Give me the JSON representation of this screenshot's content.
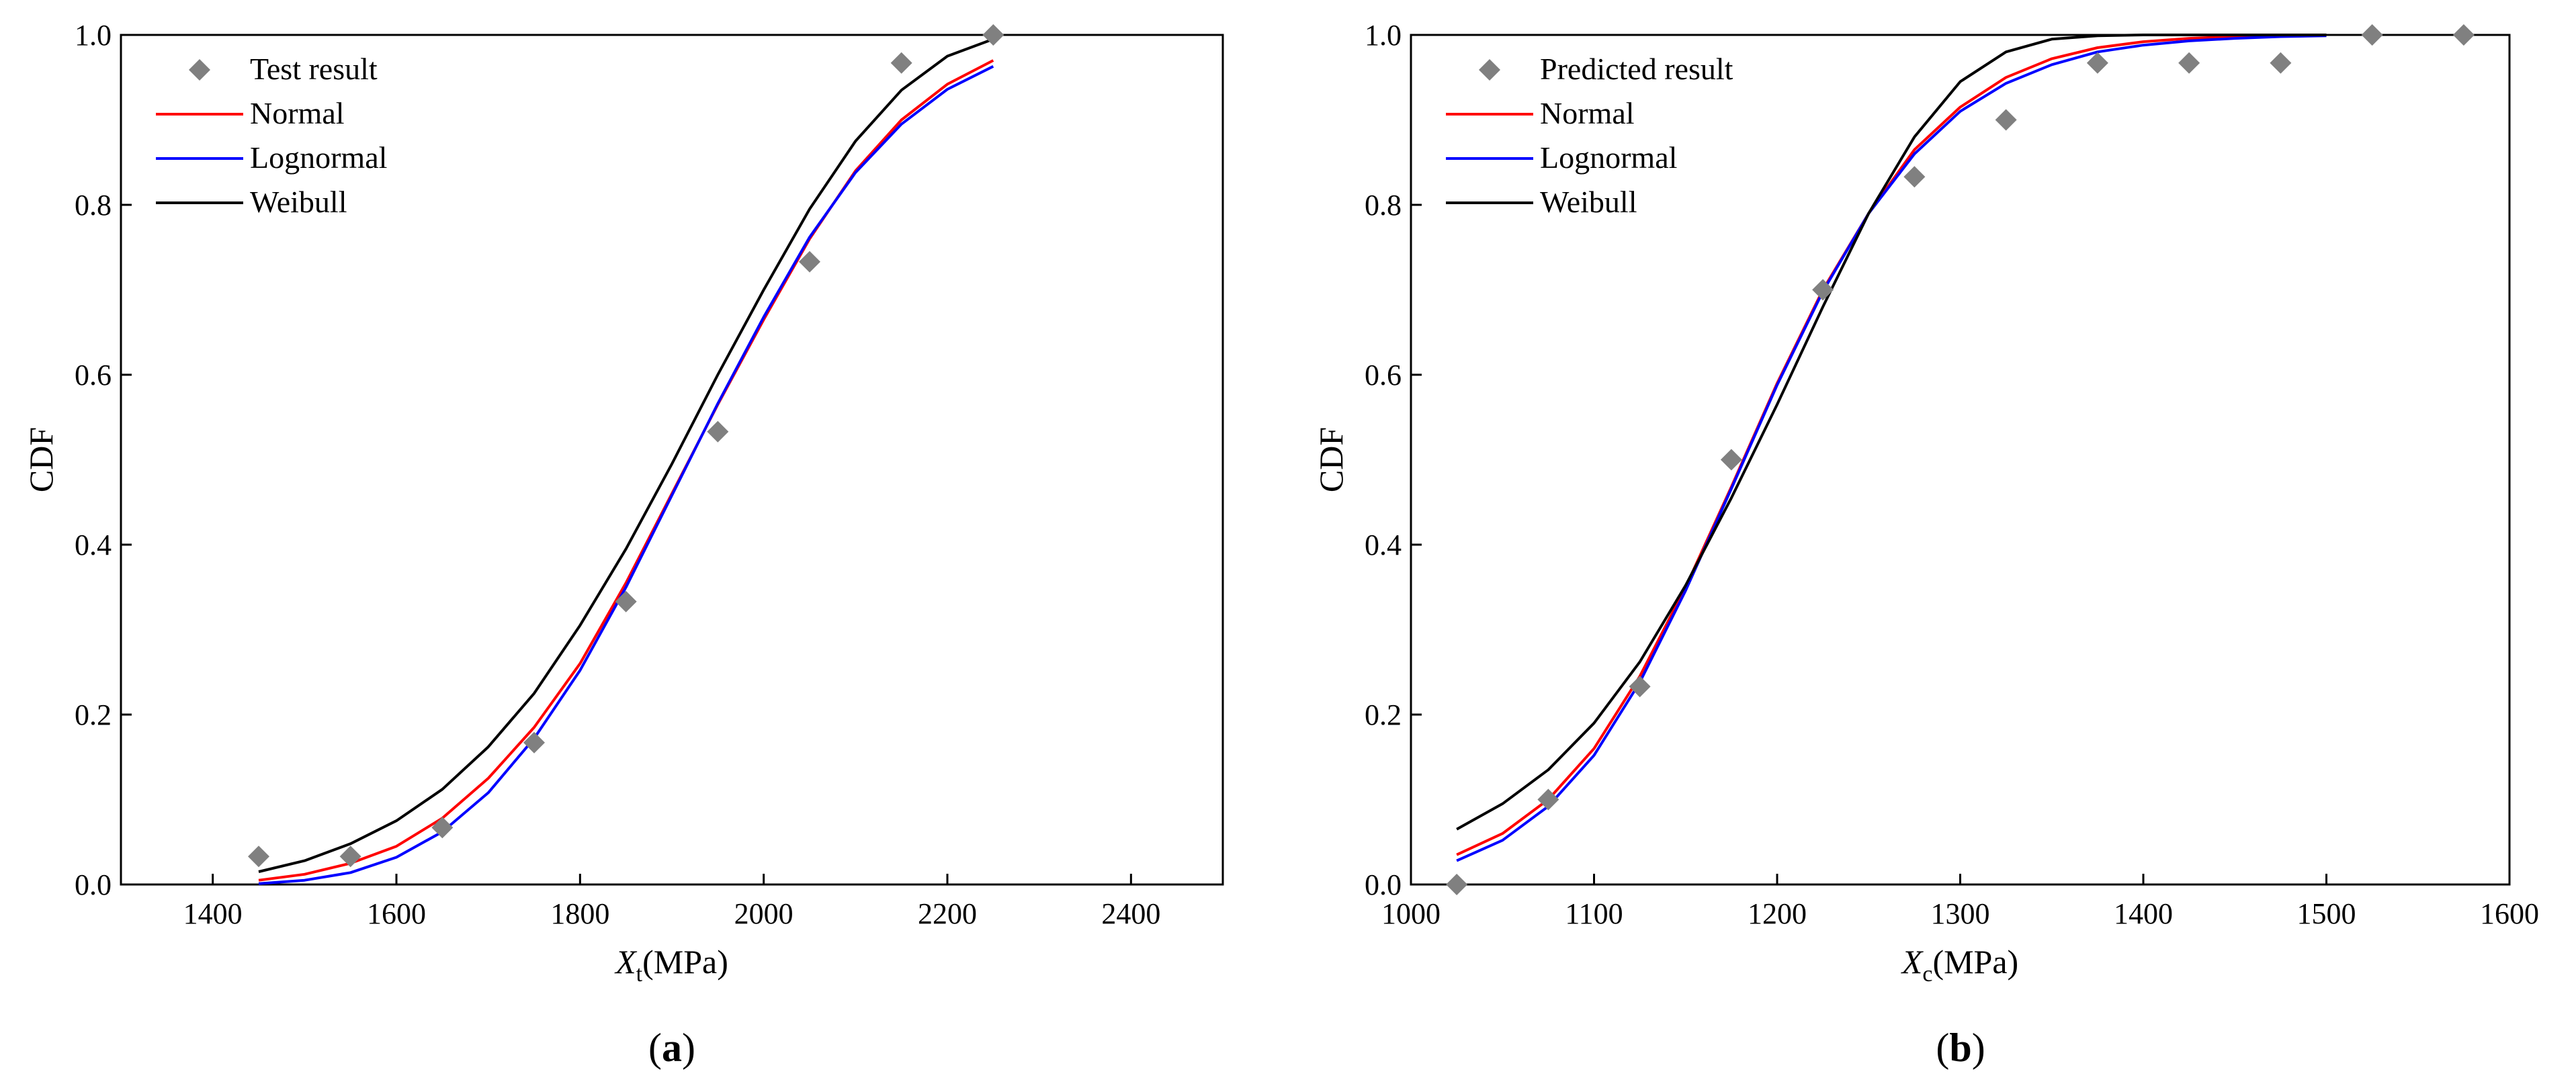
{
  "chart_data": [
    {
      "type": "line",
      "panel_label": "a",
      "title": "",
      "xlabel": {
        "variable": "X",
        "subscript": "t",
        "unit": "(MPa)"
      },
      "ylabel": "CDF",
      "xlim": [
        1300,
        2500
      ],
      "ylim": [
        0,
        1.0
      ],
      "xticks": [
        1400,
        1600,
        1800,
        2000,
        2200,
        2400
      ],
      "yticks": [
        0.0,
        0.2,
        0.4,
        0.6,
        0.8,
        1.0
      ],
      "grid": false,
      "legend_position": "top-left",
      "legend": [
        {
          "name": "Test result",
          "kind": "marker",
          "color": "#808080"
        },
        {
          "name": "Normal",
          "kind": "line",
          "color": "#ff0000"
        },
        {
          "name": "Lognormal",
          "kind": "line",
          "color": "#0000ff"
        },
        {
          "name": "Weibull",
          "kind": "line",
          "color": "#000000"
        }
      ],
      "points": {
        "name": "Test result",
        "x": [
          1450,
          1550,
          1650,
          1750,
          1850,
          1950,
          2050,
          2150,
          2250
        ],
        "y": [
          0.033,
          0.033,
          0.067,
          0.167,
          0.333,
          0.533,
          0.733,
          0.967,
          1.0
        ]
      },
      "series": [
        {
          "name": "Normal",
          "color": "#ff0000",
          "x": [
            1450,
            1500,
            1550,
            1600,
            1650,
            1700,
            1750,
            1800,
            1850,
            1900,
            1950,
            2000,
            2050,
            2100,
            2150,
            2200,
            2250
          ],
          "y": [
            0.005,
            0.012,
            0.025,
            0.045,
            0.078,
            0.125,
            0.185,
            0.26,
            0.355,
            0.46,
            0.565,
            0.665,
            0.76,
            0.84,
            0.9,
            0.942,
            0.97
          ]
        },
        {
          "name": "Lognormal",
          "color": "#0000ff",
          "x": [
            1450,
            1500,
            1550,
            1600,
            1650,
            1700,
            1750,
            1800,
            1850,
            1900,
            1950,
            2000,
            2050,
            2100,
            2150,
            2200,
            2250
          ],
          "y": [
            0.001,
            0.005,
            0.014,
            0.032,
            0.062,
            0.108,
            0.172,
            0.252,
            0.35,
            0.458,
            0.566,
            0.668,
            0.762,
            0.838,
            0.895,
            0.936,
            0.963
          ]
        },
        {
          "name": "Weibull",
          "color": "#000000",
          "x": [
            1450,
            1500,
            1550,
            1600,
            1650,
            1700,
            1750,
            1800,
            1850,
            1900,
            1950,
            2000,
            2050,
            2100,
            2150,
            2200,
            2250
          ],
          "y": [
            0.015,
            0.028,
            0.048,
            0.075,
            0.112,
            0.162,
            0.225,
            0.305,
            0.395,
            0.495,
            0.6,
            0.7,
            0.795,
            0.875,
            0.935,
            0.975,
            0.995
          ]
        }
      ]
    },
    {
      "type": "line",
      "panel_label": "b",
      "title": "",
      "xlabel": {
        "variable": "X",
        "subscript": "c",
        "unit": "(MPa)"
      },
      "ylabel": "CDF",
      "xlim": [
        1000,
        1600
      ],
      "ylim": [
        0,
        1.0
      ],
      "xticks": [
        1000,
        1100,
        1200,
        1300,
        1400,
        1500,
        1600
      ],
      "yticks": [
        0.0,
        0.2,
        0.4,
        0.6,
        0.8,
        1.0
      ],
      "grid": false,
      "legend_position": "top-left",
      "legend": [
        {
          "name": "Predicted result",
          "kind": "marker",
          "color": "#808080"
        },
        {
          "name": "Normal",
          "kind": "line",
          "color": "#ff0000"
        },
        {
          "name": "Lognormal",
          "kind": "line",
          "color": "#0000ff"
        },
        {
          "name": "Weibull",
          "kind": "line",
          "color": "#000000"
        }
      ],
      "points": {
        "name": "Predicted result",
        "x": [
          1025,
          1075,
          1125,
          1175,
          1225,
          1275,
          1325,
          1375,
          1425,
          1475,
          1525,
          1575
        ],
        "y": [
          0.0,
          0.1,
          0.233,
          0.5,
          0.7,
          0.833,
          0.9,
          0.967,
          0.967,
          0.967,
          1.0,
          1.0
        ]
      },
      "series": [
        {
          "name": "Normal",
          "color": "#ff0000",
          "x": [
            1025,
            1050,
            1075,
            1100,
            1125,
            1150,
            1175,
            1200,
            1225,
            1250,
            1275,
            1300,
            1325,
            1350,
            1375,
            1400,
            1425,
            1450,
            1475,
            1500
          ],
          "y": [
            0.035,
            0.06,
            0.1,
            0.16,
            0.245,
            0.35,
            0.468,
            0.59,
            0.7,
            0.79,
            0.865,
            0.915,
            0.95,
            0.972,
            0.985,
            0.992,
            0.996,
            0.998,
            0.999,
            1.0
          ]
        },
        {
          "name": "Lognormal",
          "color": "#0000ff",
          "x": [
            1025,
            1050,
            1075,
            1100,
            1125,
            1150,
            1175,
            1200,
            1225,
            1250,
            1275,
            1300,
            1325,
            1350,
            1375,
            1400,
            1425,
            1450,
            1475,
            1500
          ],
          "y": [
            0.028,
            0.052,
            0.092,
            0.152,
            0.238,
            0.346,
            0.466,
            0.588,
            0.698,
            0.79,
            0.86,
            0.91,
            0.943,
            0.965,
            0.98,
            0.988,
            0.993,
            0.996,
            0.998,
            0.999
          ]
        },
        {
          "name": "Weibull",
          "color": "#000000",
          "x": [
            1025,
            1050,
            1075,
            1100,
            1125,
            1150,
            1175,
            1200,
            1225,
            1250,
            1275,
            1300,
            1325,
            1350,
            1375,
            1400,
            1425,
            1450,
            1475,
            1500
          ],
          "y": [
            0.065,
            0.095,
            0.135,
            0.19,
            0.262,
            0.352,
            0.455,
            0.565,
            0.68,
            0.79,
            0.88,
            0.945,
            0.98,
            0.995,
            0.999,
            1.0,
            1.0,
            1.0,
            1.0,
            1.0
          ]
        }
      ]
    }
  ]
}
